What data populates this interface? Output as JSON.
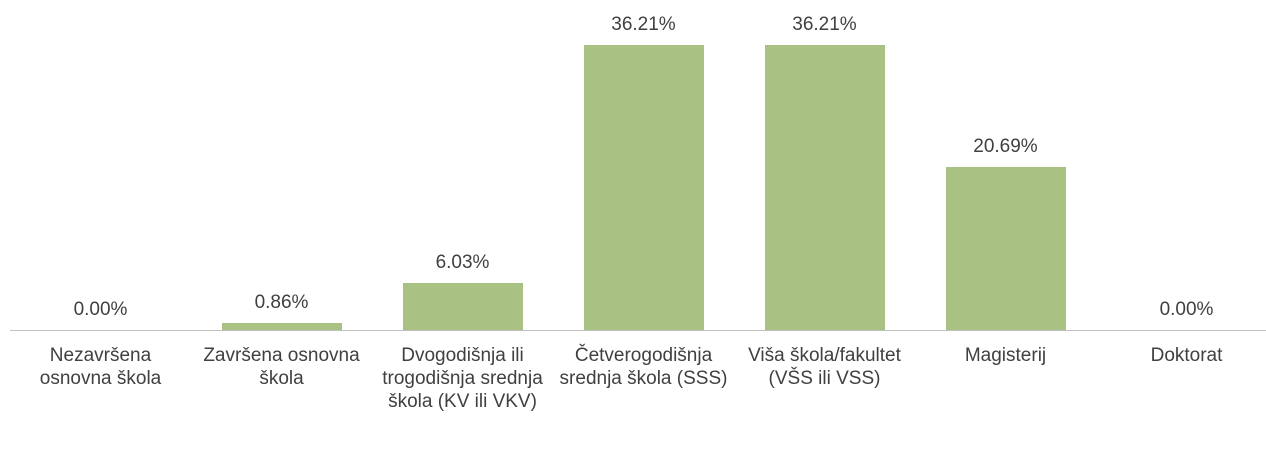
{
  "chart_data": {
    "type": "bar",
    "categories": [
      "Nezavršena osnovna škola",
      "Završena osnovna škola",
      "Dvogodišnja ili trogodišnja srednja škola (KV ili VKV)",
      "Četverogodišnja srednja škola (SSS)",
      "Viša škola/fakultet (VŠS ili VSS)",
      "Magisterij",
      "Doktorat"
    ],
    "values": [
      0,
      0.86,
      6.03,
      36.21,
      36.21,
      20.69,
      0
    ],
    "value_labels": [
      "0.00%",
      "0.86%",
      "6.03%",
      "36.21%",
      "36.21%",
      "20.69%",
      "0.00%"
    ],
    "color": "#a9c284"
  }
}
